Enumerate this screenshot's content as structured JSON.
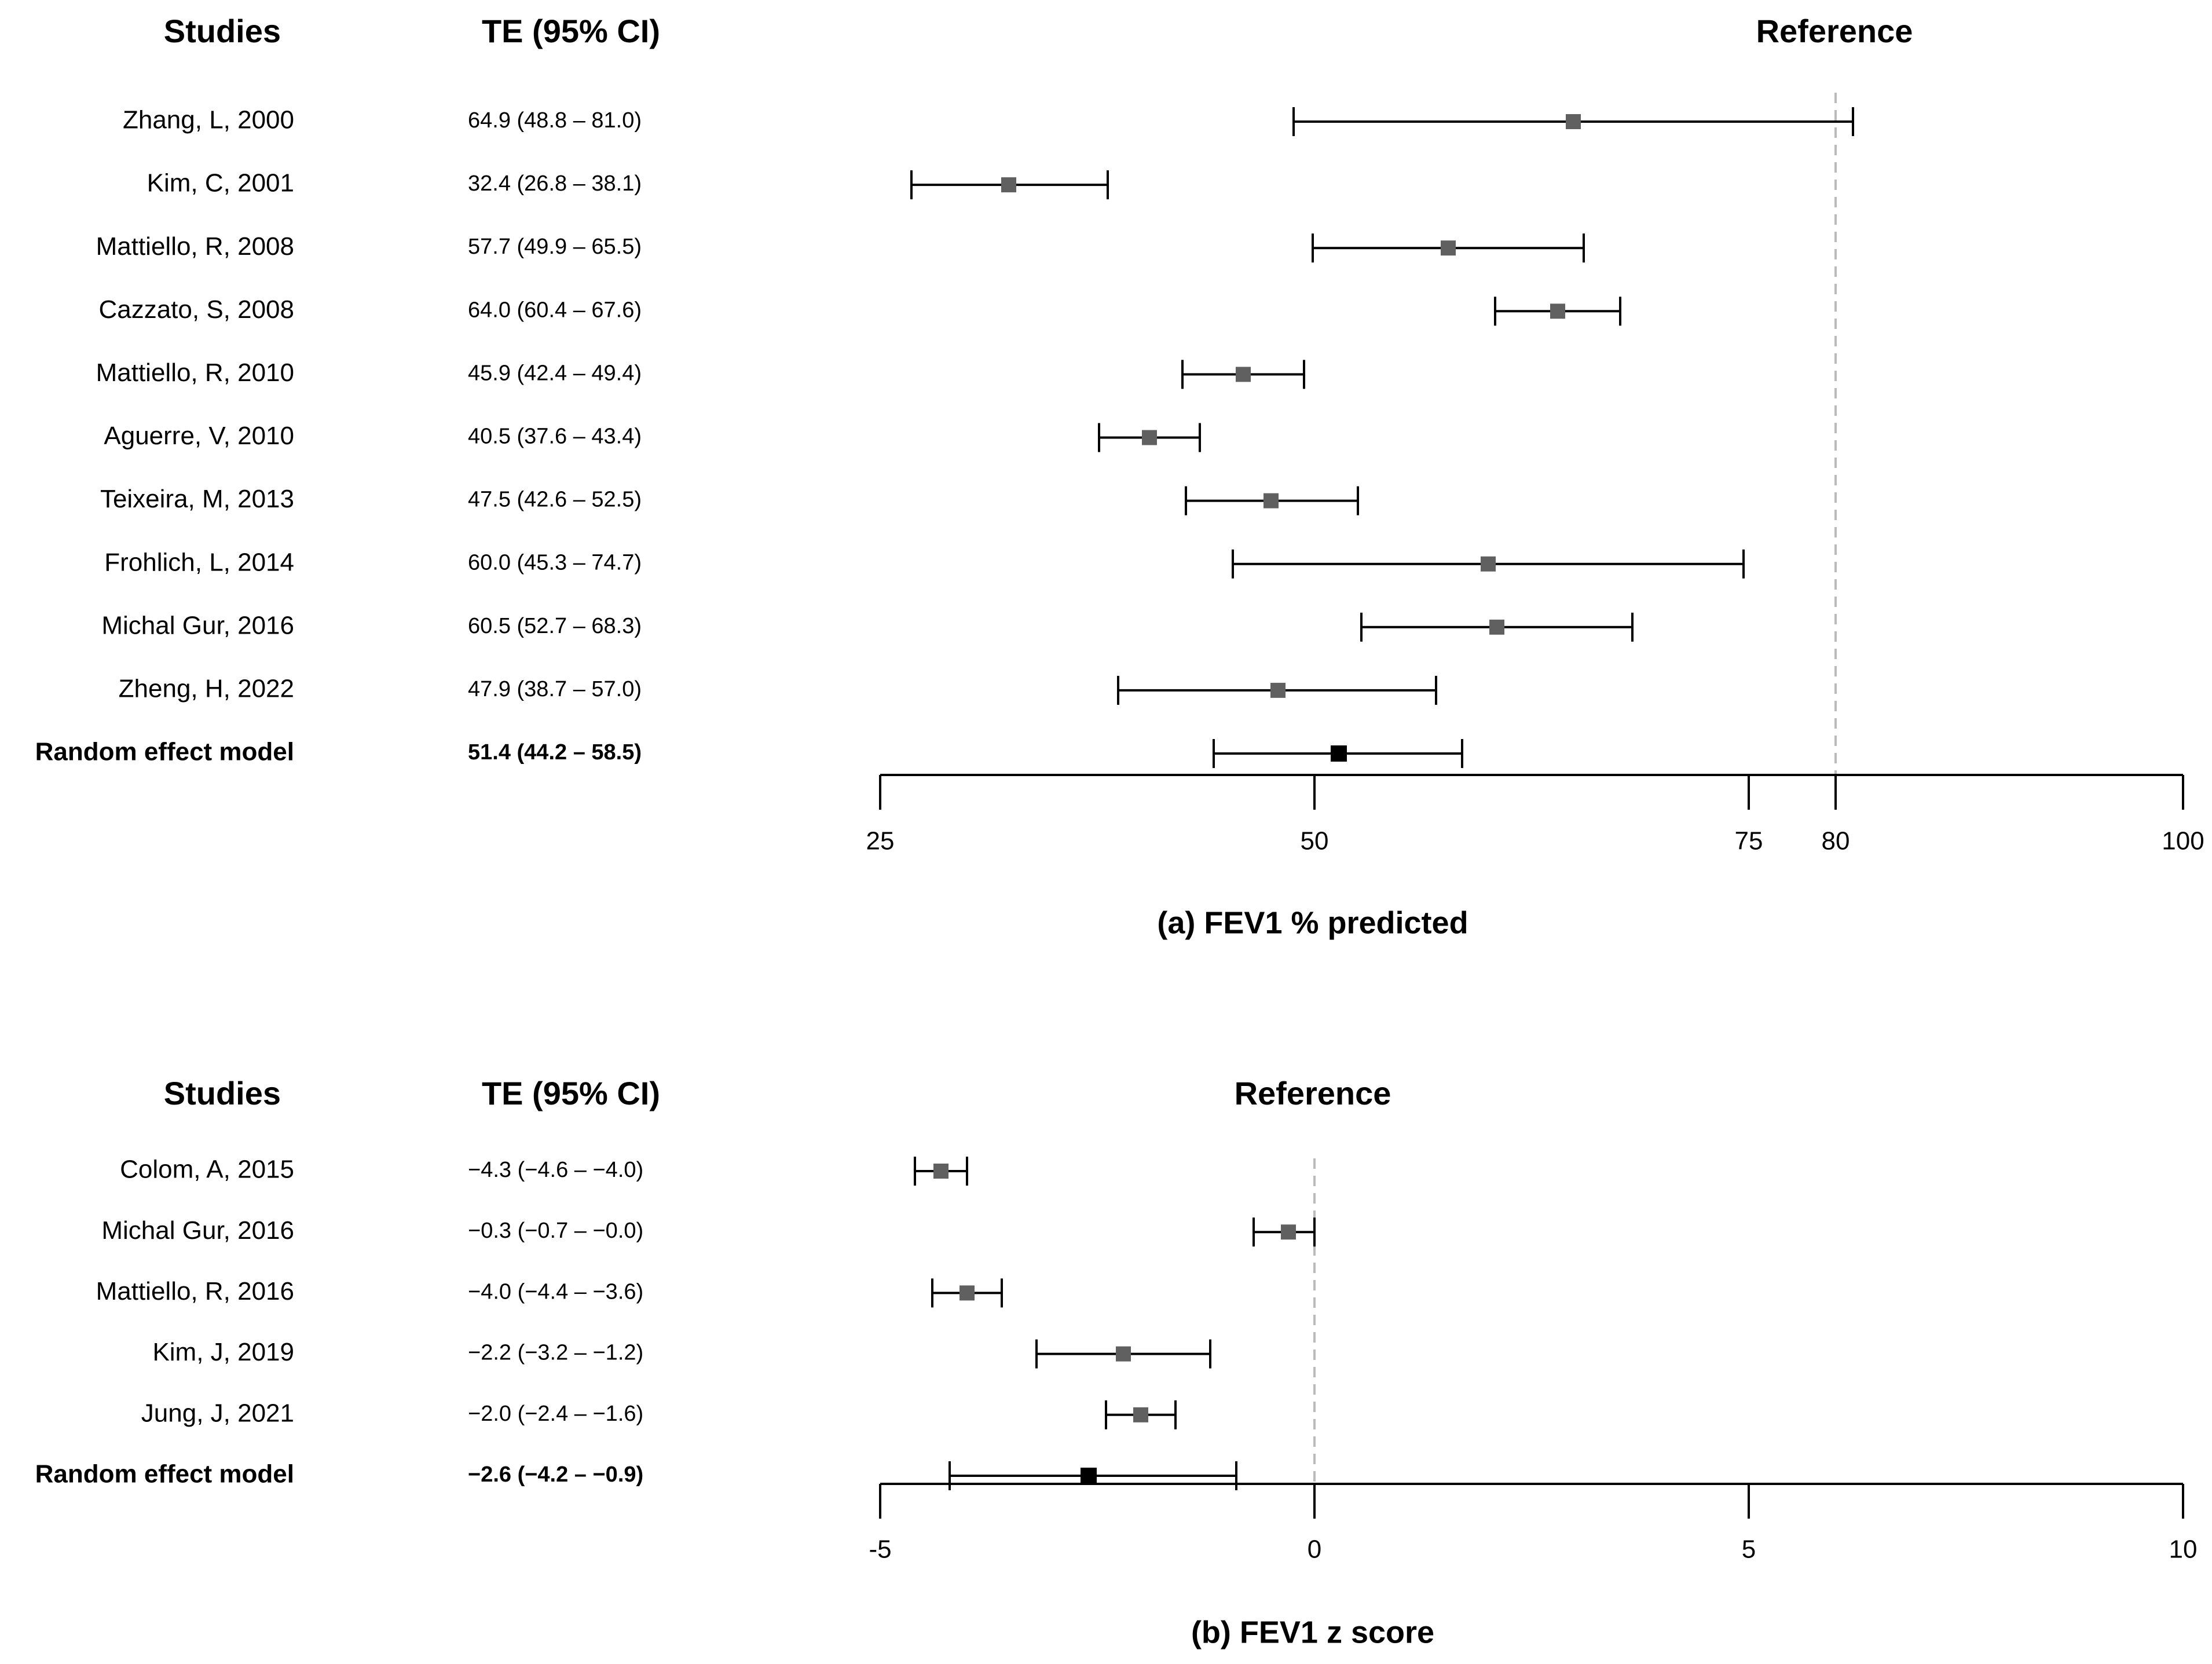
{
  "chart_data": [
    {
      "type": "forest",
      "title": "(a) FEV1 % predicted",
      "headers": {
        "studies": "Studies",
        "te": "TE (95% CI)",
        "reference": "Reference"
      },
      "reference_value": 80,
      "xlim": [
        25,
        100
      ],
      "xticks": [
        25,
        50,
        75,
        80,
        100
      ],
      "grid": false,
      "studies": [
        {
          "label": "Zhang, L, 2000",
          "te_text": "64.9 (48.8 – 81.0)",
          "te": 64.9,
          "lo": 48.8,
          "hi": 81.0
        },
        {
          "label": "Kim, C, 2001",
          "te_text": "32.4 (26.8 – 38.1)",
          "te": 32.4,
          "lo": 26.8,
          "hi": 38.1
        },
        {
          "label": "Mattiello, R, 2008",
          "te_text": "57.7 (49.9 – 65.5)",
          "te": 57.7,
          "lo": 49.9,
          "hi": 65.5
        },
        {
          "label": "Cazzato, S, 2008",
          "te_text": "64.0 (60.4 – 67.6)",
          "te": 64.0,
          "lo": 60.4,
          "hi": 67.6
        },
        {
          "label": "Mattiello, R, 2010",
          "te_text": "45.9 (42.4 – 49.4)",
          "te": 45.9,
          "lo": 42.4,
          "hi": 49.4
        },
        {
          "label": "Aguerre, V, 2010",
          "te_text": "40.5 (37.6 – 43.4)",
          "te": 40.5,
          "lo": 37.6,
          "hi": 43.4
        },
        {
          "label": "Teixeira, M, 2013",
          "te_text": "47.5 (42.6 – 52.5)",
          "te": 47.5,
          "lo": 42.6,
          "hi": 52.5
        },
        {
          "label": "Frohlich, L, 2014",
          "te_text": "60.0 (45.3 – 74.7)",
          "te": 60.0,
          "lo": 45.3,
          "hi": 74.7
        },
        {
          "label": "Michal Gur, 2016",
          "te_text": "60.5 (52.7 – 68.3)",
          "te": 60.5,
          "lo": 52.7,
          "hi": 68.3
        },
        {
          "label": "Zheng, H, 2022",
          "te_text": "47.9 (38.7 – 57.0)",
          "te": 47.9,
          "lo": 38.7,
          "hi": 57.0
        }
      ],
      "pooled": {
        "label": "Random effect model",
        "te_text": "51.4 (44.2 – 58.5)",
        "te": 51.4,
        "lo": 44.2,
        "hi": 58.5
      },
      "colors": {
        "study_marker": "#606060",
        "pooled_marker": "#000000",
        "reference_line": "#bbbbbb"
      }
    },
    {
      "type": "forest",
      "title": "(b) FEV1 z score",
      "headers": {
        "studies": "Studies",
        "te": "TE (95% CI)",
        "reference": "Reference"
      },
      "reference_value": 0,
      "xlim": [
        -5,
        10
      ],
      "xticks": [
        -5,
        0,
        5,
        10
      ],
      "grid": false,
      "studies": [
        {
          "label": "Colom, A, 2015",
          "te_text": "−4.3 (−4.6 – −4.0)",
          "te": -4.3,
          "lo": -4.6,
          "hi": -4.0
        },
        {
          "label": "Michal Gur, 2016",
          "te_text": "−0.3 (−0.7 – −0.0)",
          "te": -0.3,
          "lo": -0.7,
          "hi": 0.0
        },
        {
          "label": "Mattiello, R, 2016",
          "te_text": "−4.0 (−4.4 – −3.6)",
          "te": -4.0,
          "lo": -4.4,
          "hi": -3.6
        },
        {
          "label": "Kim, J, 2019",
          "te_text": "−2.2 (−3.2 – −1.2)",
          "te": -2.2,
          "lo": -3.2,
          "hi": -1.2
        },
        {
          "label": "Jung, J, 2021",
          "te_text": "−2.0 (−2.4 – −1.6)",
          "te": -2.0,
          "lo": -2.4,
          "hi": -1.6
        }
      ],
      "pooled": {
        "label": "Random effect model",
        "te_text": "−2.6 (−4.2 – −0.9)",
        "te": -2.6,
        "lo": -4.2,
        "hi": -0.9
      },
      "colors": {
        "study_marker": "#606060",
        "pooled_marker": "#000000",
        "reference_line": "#bbbbbb"
      }
    }
  ]
}
